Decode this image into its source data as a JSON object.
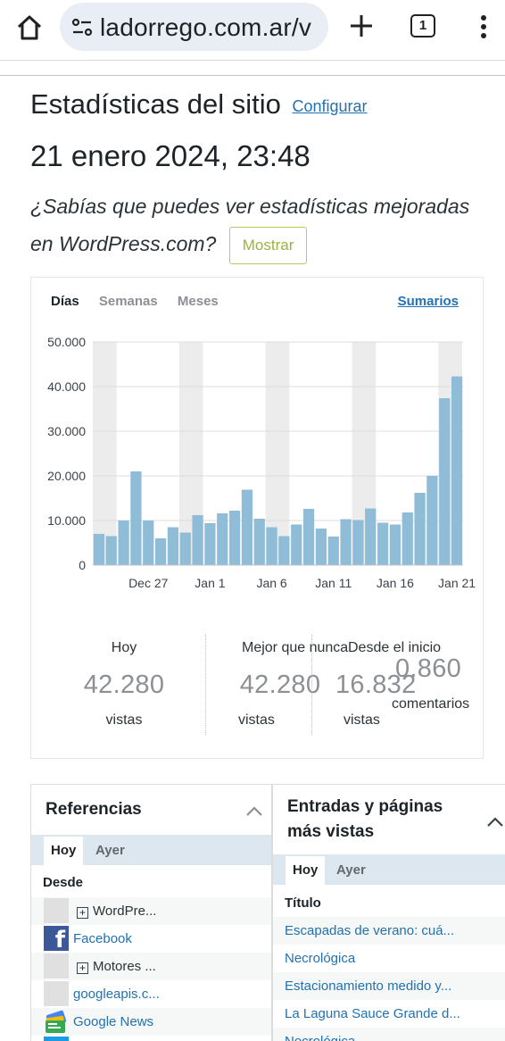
{
  "browser": {
    "url": "ladorrego.com.ar/v",
    "tab_count": "1",
    "icons": [
      "home-icon",
      "tune-icon",
      "plus-icon",
      "tab-switcher-icon",
      "more-vert-icon"
    ]
  },
  "header": {
    "title": "Estadísticas del sitio",
    "configure_link": "Configurar",
    "datetime": "21 enero 2024, 23:48",
    "promo_text": "¿Sabías que puedes ver estadísticas mejoradas en WordPress.com?",
    "show_button": "Mostrar"
  },
  "stats": {
    "tabs": [
      "Días",
      "Semanas",
      "Meses"
    ],
    "active_tab": "Días",
    "summary_link": "Sumarios",
    "kpis": [
      {
        "label": "Hoy",
        "value": "42.280",
        "unit": "vistas"
      },
      {
        "label": "Mejor que nunca",
        "value": "42.280",
        "unit": "vistas"
      },
      {
        "label": "Desde el inicio",
        "value": "16.832",
        "unit": "vistas"
      },
      {
        "label": "",
        "value": "0.860",
        "unit": "comentarios"
      }
    ]
  },
  "chart_data": {
    "type": "bar",
    "x_tick_labels": [
      "Dec 27",
      "Jan 1",
      "Jan 6",
      "Jan 11",
      "Jan 16",
      "Jan 21"
    ],
    "x_tick_indices": [
      4,
      9,
      14,
      19,
      24,
      29
    ],
    "y_tick_labels": [
      "0",
      "10.000",
      "20.000",
      "30.000",
      "40.000",
      "50.000"
    ],
    "ylim": [
      0,
      50000
    ],
    "weekend_band_indices": [
      0,
      7,
      14,
      21,
      28
    ],
    "values": [
      7000,
      6500,
      10000,
      21000,
      10000,
      6000,
      8500,
      7300,
      11200,
      9400,
      11600,
      12200,
      16900,
      10400,
      8500,
      6500,
      9100,
      12600,
      8200,
      6400,
      10300,
      10100,
      12700,
      9500,
      9100,
      11800,
      16200,
      20000,
      37400,
      42280
    ],
    "bar_color": "#8fbcd6",
    "band_color": "#ececec",
    "grid": true
  },
  "referrers": {
    "title": "Referencias",
    "tabs": [
      "Hoy",
      "Ayer"
    ],
    "column_header": "Desde",
    "rows": [
      {
        "label": "WordPre...",
        "icon": "blank-icon",
        "expandable": true
      },
      {
        "label": "Facebook",
        "icon": "facebook-icon",
        "expandable": false
      },
      {
        "label": "Motores ...",
        "icon": "blank-icon",
        "expandable": true
      },
      {
        "label": "googleapis.c...",
        "icon": "blank-icon",
        "expandable": false
      },
      {
        "label": "Google News",
        "icon": "google-news-icon",
        "expandable": false
      }
    ]
  },
  "top_posts": {
    "title_line1": "Entradas y páginas",
    "title_line2": "más vistas",
    "tabs": [
      "Hoy",
      "Ayer"
    ],
    "column_header": "Título",
    "rows": [
      "Escapadas de verano: cuá...",
      "Necrológica",
      "Estacionamiento medido y...",
      "La Laguna Sauce Grande d...",
      "Necrológica"
    ]
  }
}
